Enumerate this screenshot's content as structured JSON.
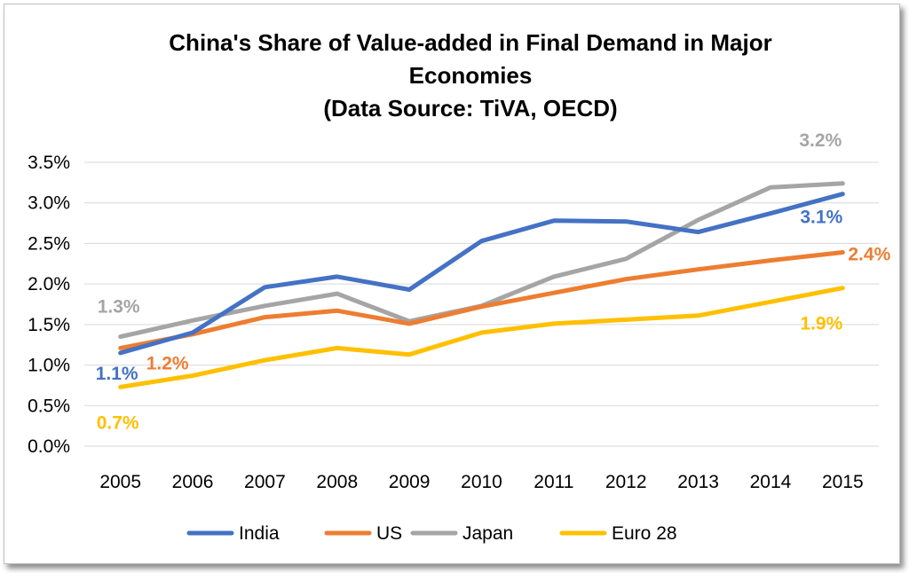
{
  "chart_data": {
    "type": "line",
    "title": [
      "China's Share of Value-added in Final Demand in Major",
      "Economies",
      "(Data Source: TiVA, OECD)"
    ],
    "xlabel": "",
    "ylabel": "",
    "x": [
      "2005",
      "2006",
      "2007",
      "2008",
      "2009",
      "2010",
      "2011",
      "2012",
      "2013",
      "2014",
      "2015"
    ],
    "ylim": [
      0,
      3.5
    ],
    "yticks": [
      0.0,
      0.5,
      1.0,
      1.5,
      2.0,
      2.5,
      3.0,
      3.5
    ],
    "ytick_labels": [
      "0.0%",
      "0.5%",
      "1.0%",
      "1.5%",
      "2.0%",
      "2.5%",
      "3.0%",
      "3.5%"
    ],
    "grid": "horizontal",
    "legend_position": "bottom",
    "series": [
      {
        "name": "India",
        "color": "#4472c4",
        "values": [
          1.15,
          1.4,
          1.96,
          2.09,
          1.93,
          2.53,
          2.78,
          2.77,
          2.64,
          2.87,
          3.11
        ],
        "labels": [
          {
            "index": 0,
            "text": "1.1%"
          },
          {
            "index": 10,
            "text": "3.1%"
          }
        ]
      },
      {
        "name": "US",
        "color": "#ed7d31",
        "values": [
          1.21,
          1.38,
          1.59,
          1.67,
          1.51,
          1.72,
          1.89,
          2.06,
          2.18,
          2.29,
          2.39
        ],
        "labels": [
          {
            "index": 0,
            "text": "1.2%"
          },
          {
            "index": 10,
            "text": "2.4%"
          }
        ]
      },
      {
        "name": "Japan",
        "color": "#a5a5a5",
        "values": [
          1.35,
          1.55,
          1.73,
          1.88,
          1.54,
          1.73,
          2.09,
          2.31,
          2.79,
          3.19,
          3.24
        ],
        "labels": [
          {
            "index": 0,
            "text": "1.3%"
          },
          {
            "index": 10,
            "text": "3.2%"
          }
        ]
      },
      {
        "name": "Euro 28",
        "color": "#ffc000",
        "values": [
          0.73,
          0.87,
          1.06,
          1.21,
          1.13,
          1.4,
          1.51,
          1.56,
          1.61,
          1.78,
          1.95
        ],
        "labels": [
          {
            "index": 0,
            "text": "0.7%"
          },
          {
            "index": 10,
            "text": "1.9%"
          }
        ]
      }
    ]
  }
}
